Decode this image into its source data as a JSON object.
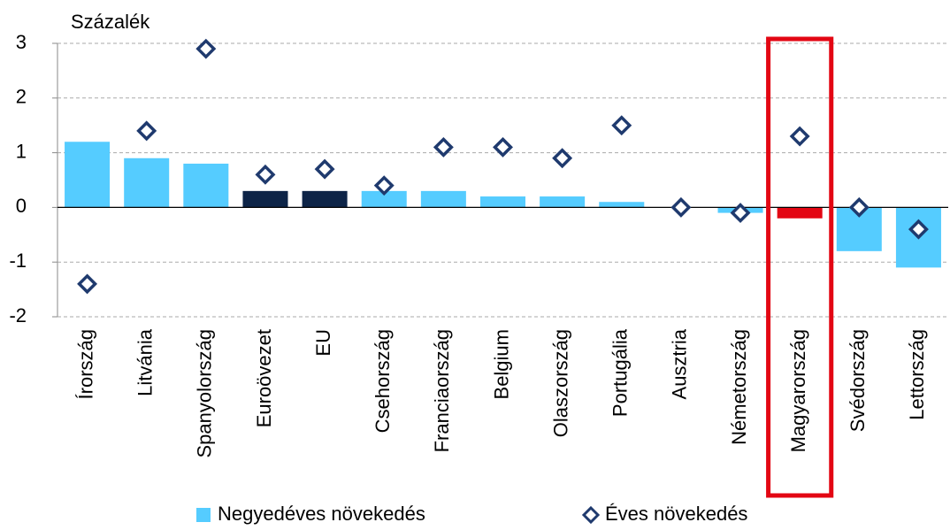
{
  "chart_data": {
    "type": "bar+scatter",
    "y_label": "Százalék",
    "categories": [
      "Írország",
      "Litvánia",
      "Spanyolország",
      "Euroövezet",
      "EU",
      "Csehország",
      "Franciaország",
      "Belgium",
      "Olaszország",
      "Portugália",
      "Ausztria",
      "Németország",
      "Magyarország",
      "Svédország",
      "Lettország"
    ],
    "series": [
      {
        "name": "Negyedéves növekedés",
        "type": "bar",
        "color": "#55ccff",
        "colors": [
          "#55ccff",
          "#55ccff",
          "#55ccff",
          "#0d2447",
          "#0d2447",
          "#55ccff",
          "#55ccff",
          "#55ccff",
          "#55ccff",
          "#55ccff",
          "#55ccff",
          "#55ccff",
          "#e30613",
          "#55ccff",
          "#55ccff"
        ],
        "values": [
          1.2,
          0.9,
          0.8,
          0.3,
          0.3,
          0.3,
          0.3,
          0.2,
          0.2,
          0.1,
          0,
          -0.1,
          -0.2,
          -0.8,
          -1.1
        ]
      },
      {
        "name": "Éves növekedés",
        "type": "scatter",
        "color": "#1f3a6e",
        "values": [
          -1.4,
          1.4,
          2.9,
          0.6,
          0.7,
          0.4,
          1.1,
          1.1,
          0.9,
          1.5,
          0,
          -0.1,
          1.3,
          0,
          -0.4
        ]
      }
    ],
    "highlight_category": "Magyarország",
    "highlight_color": "#e30613",
    "ylim": [
      -2,
      3
    ],
    "yticks": [
      -2,
      -1,
      0,
      1,
      2,
      3
    ],
    "grid": true,
    "legend": "bottom"
  }
}
